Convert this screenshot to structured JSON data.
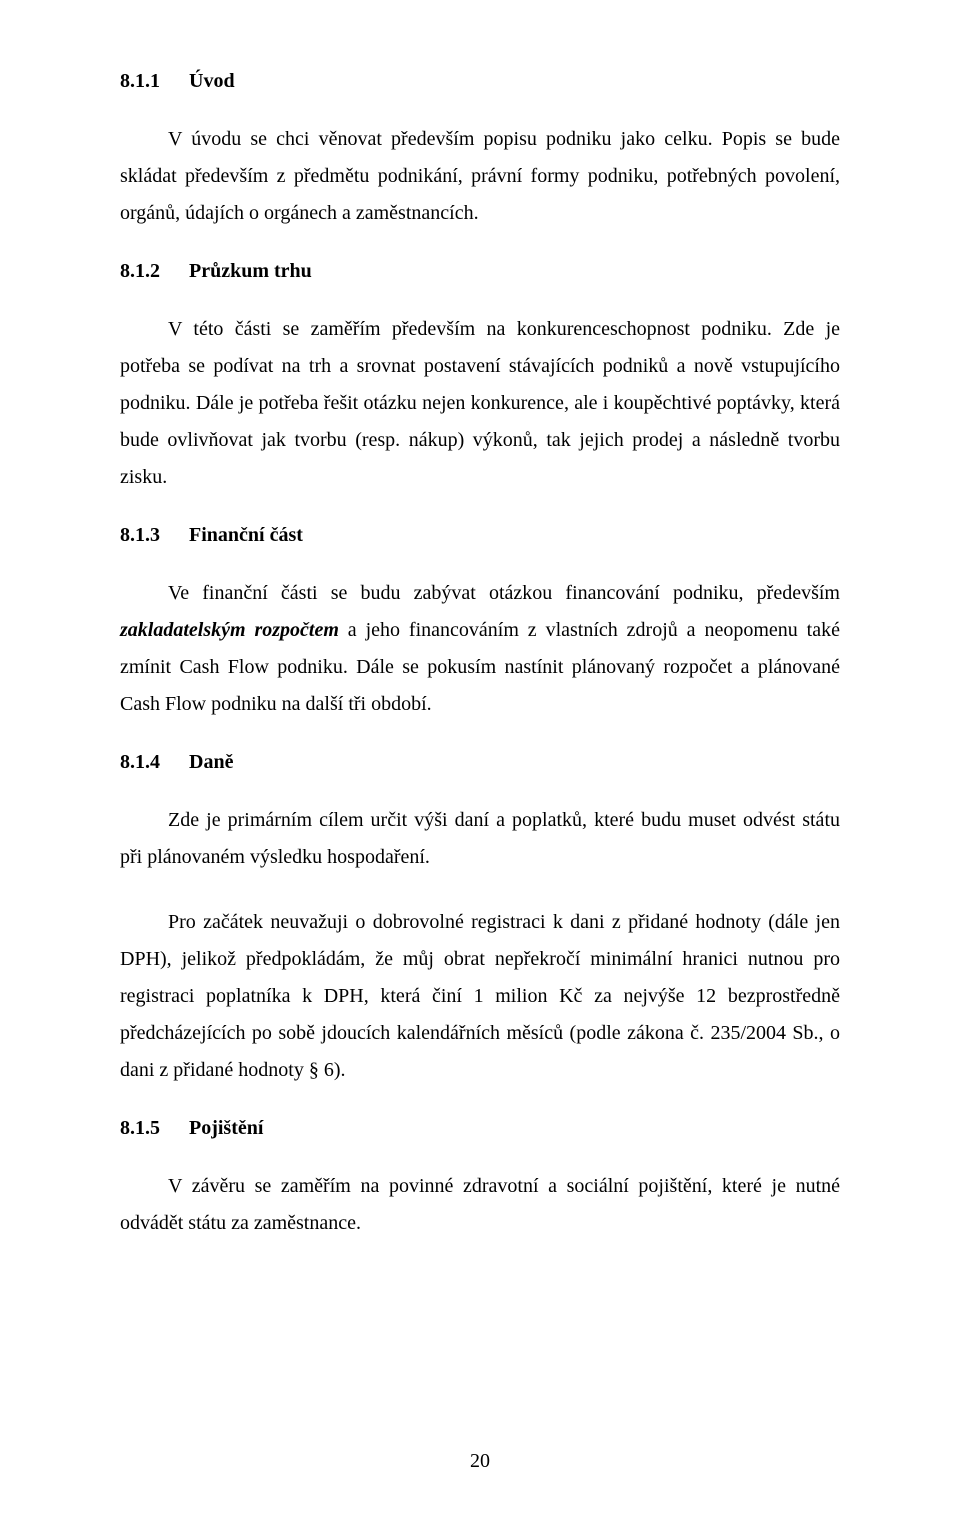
{
  "sections": {
    "s811": {
      "num": "8.1.1",
      "title": "Úvod"
    },
    "s812": {
      "num": "8.1.2",
      "title": "Průzkum trhu"
    },
    "s813": {
      "num": "8.1.3",
      "title": "Finanční část"
    },
    "s814": {
      "num": "8.1.4",
      "title": "Daně"
    },
    "s815": {
      "num": "8.1.5",
      "title": "Pojištění"
    }
  },
  "p": {
    "p1": "V úvodu se chci věnovat především popisu podniku jako celku. Popis se bude skládat především z předmětu podnikání, právní formy podniku, potřebných povolení, orgánů, údajích o orgánech a zaměstnancích.",
    "p2": "V této části se zaměřím především na konkurenceschopnost podniku. Zde je potřeba se podívat na trh a srovnat postavení stávajících podniků a nově vstupujícího podniku. Dále je potřeba řešit otázku nejen konkurence, ale i koupěchtivé poptávky, která bude ovlivňovat jak tvorbu (resp. nákup) výkonů, tak jejich prodej a následně tvorbu zisku.",
    "p3a": "Ve finanční části se budu zabývat otázkou financování podniku, především ",
    "p3b": "zakladatelským rozpočtem",
    "p3c": " a jeho financováním z vlastních zdrojů a neopomenu také zmínit Cash Flow podniku. Dále se pokusím nastínit plánovaný rozpočet a plánované Cash Flow podniku na další tři období.",
    "p4": "Zde je primárním cílem určit výši daní a poplatků, které budu muset odvést státu při plánovaném výsledku hospodaření.",
    "p5": "Pro začátek neuvažuji o dobrovolné registraci k dani z přidané hodnoty (dále jen DPH), jelikož předpokládám, že můj obrat nepřekročí minimální hranici nutnou pro registraci poplatníka k DPH, která činí 1 milion Kč za nejvýše 12 bezprostředně předcházejících po sobě jdoucích kalendářních měsíců (podle zákona č. 235/2004 Sb., o dani z přidané hodnoty § 6).",
    "p6": "V závěru se zaměřím na povinné zdravotní a sociální pojištění, které je nutné odvádět státu za zaměstnance."
  },
  "pagenum": "20"
}
